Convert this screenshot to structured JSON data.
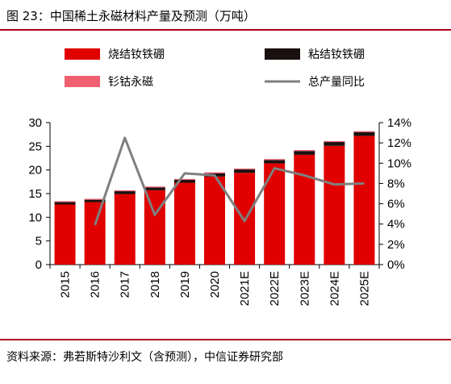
{
  "figure": {
    "title": "图 23：中国稀土永磁材料产量及预测（万吨）",
    "source": "资料来源：弗若斯特沙利文（含预测），中信证券研究部"
  },
  "colors": {
    "sintered": "#e00000",
    "bonded": "#1a1010",
    "samarium": "#f06070",
    "line": "#7f7f7f",
    "accent": "#b0001e"
  },
  "chart_data": {
    "type": "bar",
    "stacked": true,
    "categories": [
      "2015",
      "2016",
      "2017",
      "2018",
      "2019",
      "2020",
      "2021E",
      "2022E",
      "2023E",
      "2024E",
      "2025E"
    ],
    "series": [
      {
        "name": "烧结钕铁硼",
        "type": "bar",
        "axis": "left",
        "values": [
          12.7,
          13.2,
          14.9,
          15.7,
          17.3,
          18.6,
          19.4,
          21.4,
          23.2,
          25.1,
          27.2
        ]
      },
      {
        "name": "粘结钕铁硼",
        "type": "bar",
        "axis": "left",
        "values": [
          0.5,
          0.5,
          0.6,
          0.6,
          0.6,
          0.7,
          0.7,
          0.7,
          0.8,
          0.8,
          0.8
        ]
      },
      {
        "name": "钐钴永磁",
        "type": "bar",
        "axis": "left",
        "values": [
          0.2,
          0.2,
          0.2,
          0.2,
          0.2,
          0.2,
          0.2,
          0.2,
          0.2,
          0.2,
          0.2
        ]
      },
      {
        "name": "总产量同比",
        "type": "line",
        "axis": "right",
        "values": [
          null,
          3.9,
          12.5,
          4.9,
          9.0,
          8.8,
          4.3,
          9.5,
          8.8,
          7.9,
          8.0
        ]
      }
    ],
    "y_left": {
      "min": 0,
      "max": 30,
      "ticks": [
        "0",
        "5",
        "10",
        "15",
        "20",
        "25",
        "30"
      ]
    },
    "y_right": {
      "min": 0,
      "max": 14,
      "unit": "%",
      "ticks": [
        "0%",
        "2%",
        "4%",
        "6%",
        "8%",
        "10%",
        "12%",
        "14%"
      ]
    },
    "legend_position": "top",
    "grid": false
  }
}
